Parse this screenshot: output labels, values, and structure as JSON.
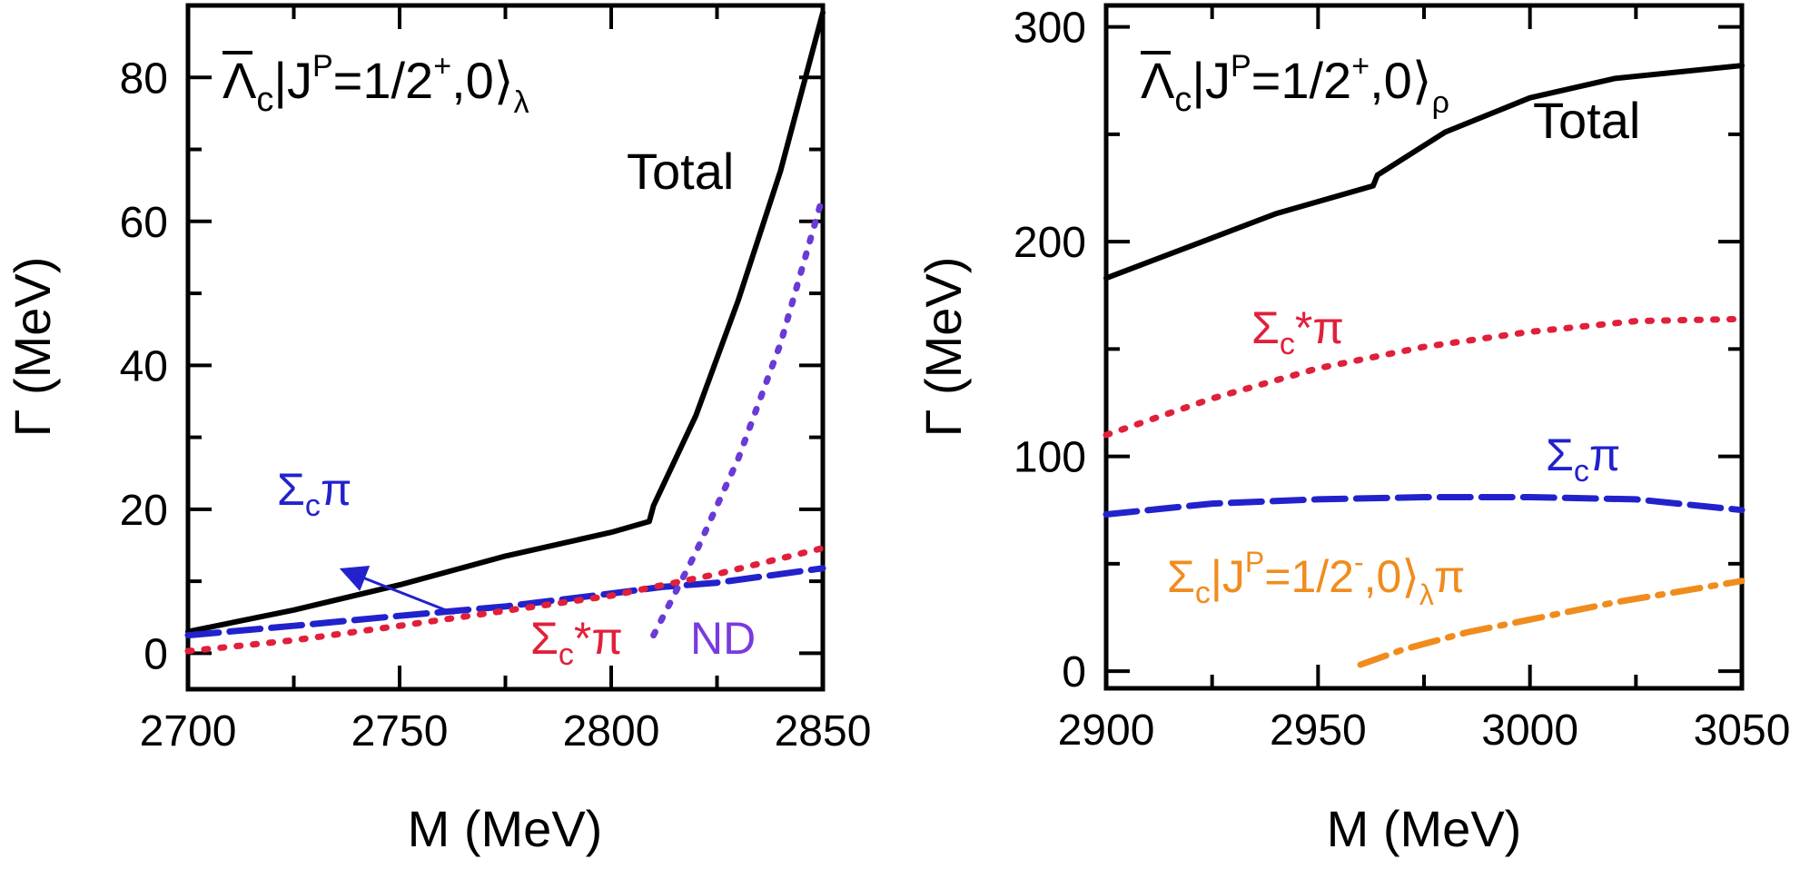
{
  "chart_data": [
    {
      "type": "line",
      "panel": "left",
      "title_parts": {
        "lambda": "Λ",
        "sub": "c",
        "mid": "|J",
        "sup": "P",
        "rest": "=1/2",
        "parity": "+",
        "tail": ",0⟩",
        "mode": "λ"
      },
      "xlabel": "M (MeV)",
      "ylabel": "Γ (MeV)",
      "xlim": [
        2700,
        2850
      ],
      "ylim": [
        -5,
        90
      ],
      "xticks": [
        2700,
        2750,
        2800,
        2850
      ],
      "yticks": [
        0,
        20,
        40,
        60,
        80
      ],
      "series": [
        {
          "name": "Total",
          "color": "#000000",
          "style": "solid",
          "x": [
            2700,
            2725,
            2750,
            2775,
            2800,
            2809,
            2810,
            2820,
            2830,
            2840,
            2850
          ],
          "y": [
            3.0,
            6.0,
            9.5,
            13.5,
            16.8,
            18.3,
            20.5,
            33.0,
            49.0,
            67.0,
            89.0
          ]
        },
        {
          "name": "Σcπ",
          "color": "#2222cc",
          "style": "dash",
          "x": [
            2700,
            2725,
            2750,
            2775,
            2800,
            2812,
            2825,
            2850
          ],
          "y": [
            2.5,
            3.8,
            5.2,
            6.5,
            8.3,
            9.2,
            9.8,
            11.8
          ]
        },
        {
          "name": "Σc*π",
          "color": "#e0203a",
          "style": "dot",
          "x": [
            2700,
            2725,
            2750,
            2775,
            2800,
            2825,
            2850
          ],
          "y": [
            0.3,
            1.8,
            3.8,
            5.9,
            8.0,
            11.0,
            14.6
          ]
        },
        {
          "name": "ND",
          "color": "#6a3ad6",
          "style": "dot",
          "x": [
            2810,
            2820,
            2830,
            2840,
            2850
          ],
          "y": [
            2.5,
            14.0,
            27.0,
            43.0,
            63.5
          ]
        }
      ],
      "annotations": {
        "total": "Total",
        "sigma_pi": {
          "base": "Σ",
          "sub": "c",
          "tail": "π"
        },
        "sigma_star_pi": {
          "base": "Σ",
          "sub": "c",
          "tail": "*π"
        },
        "nd": "ND"
      },
      "arrow": {
        "from": [
          2763,
          5.5
        ],
        "to": [
          2737,
          11.5
        ],
        "color": "#2222cc"
      }
    },
    {
      "type": "line",
      "panel": "right",
      "title_parts": {
        "lambda": "Λ",
        "sub": "c",
        "mid": "|J",
        "sup": "P",
        "rest": "=1/2",
        "parity": "+",
        "tail": ",0⟩",
        "mode": "ρ"
      },
      "xlabel": "M (MeV)",
      "ylabel": "Γ (MeV)",
      "xlim": [
        2900,
        3050
      ],
      "ylim": [
        -8,
        310
      ],
      "xticks": [
        2900,
        2950,
        3000,
        3050
      ],
      "yticks": [
        0,
        100,
        200,
        300
      ],
      "series": [
        {
          "name": "Total",
          "color": "#000000",
          "style": "solid",
          "x": [
            2900,
            2920,
            2940,
            2963,
            2964,
            2980,
            3000,
            3020,
            3050
          ],
          "y": [
            183,
            198,
            213,
            226,
            231,
            251,
            267,
            276,
            282
          ]
        },
        {
          "name": "Σc*π",
          "color": "#e0203a",
          "style": "dot",
          "x": [
            2900,
            2925,
            2950,
            2975,
            3000,
            3025,
            3050
          ],
          "y": [
            110,
            127,
            141,
            151,
            158,
            163,
            164
          ]
        },
        {
          "name": "Σcπ",
          "color": "#2222cc",
          "style": "dash",
          "x": [
            2900,
            2925,
            2950,
            2975,
            3000,
            3025,
            3050
          ],
          "y": [
            73,
            78,
            80,
            81,
            81,
            80,
            75
          ]
        },
        {
          "name": "Σc|JP=1/2-,0⟩λπ",
          "color": "#f08c1e",
          "style": "dashdot",
          "x": [
            2960,
            2970,
            2985,
            3000,
            3020,
            3050
          ],
          "y": [
            3,
            10,
            18,
            24,
            32,
            42
          ]
        }
      ],
      "annotations": {
        "total": "Total",
        "sigma_star_pi": {
          "base": "Σ",
          "sub": "c",
          "tail": "*π"
        },
        "sigma_pi": {
          "base": "Σ",
          "sub": "c",
          "tail": "π"
        },
        "sigma_lambda_pi": {
          "base": "Σ",
          "sub": "c",
          "mid": "|J",
          "sup": "P",
          "rest": "=1/2",
          "parity": "-",
          "tail": ",0⟩",
          "mode": "λ",
          "end": "π"
        }
      }
    }
  ]
}
